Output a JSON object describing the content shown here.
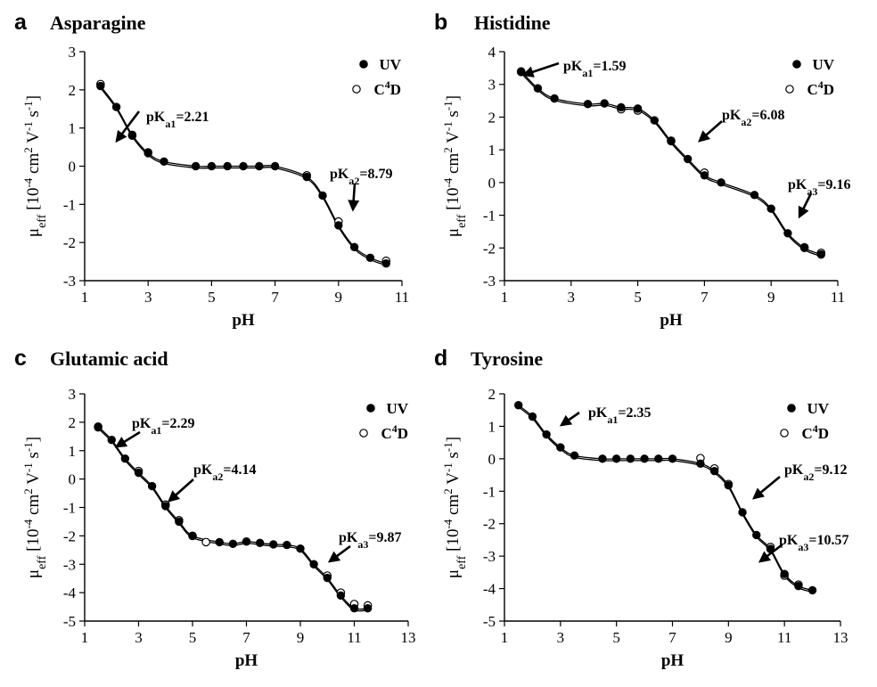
{
  "chart_data": [
    {
      "type": "scatter",
      "letter": "a",
      "title": "Asparagine",
      "xlabel": "pH",
      "ylabel": "μeff [10-4 cm2 V-1 s-1]",
      "xlim": [
        1,
        11
      ],
      "ylim": [
        -3,
        3
      ],
      "xticks": [
        "1",
        "3",
        "5",
        "7",
        "9",
        "11"
      ],
      "yticks": [
        "-3",
        "-2",
        "-1",
        "0",
        "1",
        "2",
        "3"
      ],
      "legend": [
        {
          "label": "UV",
          "marker": "filled-circle"
        },
        {
          "label": "C4D",
          "marker": "open-circle"
        }
      ],
      "series": [
        {
          "name": "UV",
          "x": [
            1.5,
            2.0,
            2.5,
            3.0,
            3.5,
            4.5,
            5.0,
            5.5,
            6.0,
            6.5,
            7.0,
            8.0,
            8.5,
            9.0,
            9.5,
            10.0,
            10.5
          ],
          "y": [
            2.1,
            1.55,
            0.82,
            0.34,
            0.12,
            0.0,
            0.0,
            0.0,
            0.0,
            0.0,
            0.0,
            -0.28,
            -0.77,
            -1.55,
            -2.12,
            -2.4,
            -2.55
          ]
        },
        {
          "name": "C4D",
          "x": [
            1.5,
            2.5,
            3.0,
            8.0,
            9.0,
            10.5
          ],
          "y": [
            2.15,
            0.8,
            0.36,
            -0.24,
            -1.45,
            -2.48
          ]
        }
      ],
      "annotations": [
        {
          "label": "pKa1=2.21",
          "pK": "pK",
          "sub": "a1",
          "val": "=2.21"
        },
        {
          "label": "pKa2=8.79",
          "pK": "pK",
          "sub": "a2",
          "val": "=8.79"
        }
      ]
    },
    {
      "type": "scatter",
      "letter": "b",
      "title": "Histidine",
      "xlabel": "pH",
      "ylabel": "μeff [10-4 cm2 V-1 s-1]",
      "xlim": [
        1,
        11
      ],
      "ylim": [
        -3,
        4
      ],
      "xticks": [
        "1",
        "3",
        "5",
        "7",
        "9",
        "11"
      ],
      "yticks": [
        "-3",
        "-2",
        "-1",
        "0",
        "1",
        "2",
        "3",
        "4"
      ],
      "legend": [
        {
          "label": "UV",
          "marker": "filled-circle"
        },
        {
          "label": "C4D",
          "marker": "open-circle"
        }
      ],
      "series": [
        {
          "name": "UV",
          "x": [
            1.5,
            2.0,
            2.5,
            3.5,
            4.0,
            4.5,
            5.0,
            5.5,
            6.0,
            6.5,
            7.0,
            7.5,
            8.5,
            9.0,
            9.5,
            10.0,
            10.5
          ],
          "y": [
            3.4,
            2.88,
            2.57,
            2.4,
            2.42,
            2.3,
            2.26,
            1.9,
            1.26,
            0.72,
            0.22,
            0.0,
            -0.38,
            -0.8,
            -1.55,
            -2.0,
            -2.2
          ]
        },
        {
          "name": "C4D",
          "x": [
            1.5,
            4.5,
            5.0,
            6.0,
            7.0,
            10.0,
            10.5
          ],
          "y": [
            3.38,
            2.24,
            2.2,
            1.28,
            0.3,
            -1.98,
            -2.15
          ]
        }
      ],
      "annotations": [
        {
          "label": "pKa1=1.59",
          "pK": "pK",
          "sub": "a1",
          "val": "=1.59"
        },
        {
          "label": "pKa2=6.08",
          "pK": "pK",
          "sub": "a2",
          "val": "=6.08"
        },
        {
          "label": "pKa3=9.16",
          "pK": "pK",
          "sub": "a3",
          "val": "=9.16"
        }
      ]
    },
    {
      "type": "scatter",
      "letter": "c",
      "title": "Glutamic acid",
      "xlabel": "pH",
      "ylabel": "μeff [10-4 cm2 V-1 s-1]",
      "xlim": [
        1,
        13
      ],
      "ylim": [
        -5,
        3
      ],
      "xticks": [
        "1",
        "3",
        "5",
        "7",
        "9",
        "11",
        "13"
      ],
      "yticks": [
        "-5",
        "-4",
        "-3",
        "-2",
        "-1",
        "0",
        "1",
        "2",
        "3"
      ],
      "legend": [
        {
          "label": "UV",
          "marker": "filled-circle"
        },
        {
          "label": "C4D",
          "marker": "open-circle"
        }
      ],
      "series": [
        {
          "name": "UV",
          "x": [
            1.5,
            2.0,
            2.5,
            3.0,
            3.5,
            4.0,
            4.5,
            5.0,
            6.0,
            6.5,
            7.0,
            7.5,
            8.0,
            8.5,
            9.0,
            9.5,
            10.0,
            10.5,
            11.0,
            11.5
          ],
          "y": [
            1.85,
            1.38,
            0.72,
            0.22,
            -0.25,
            -0.95,
            -1.5,
            -2.0,
            -2.22,
            -2.28,
            -2.2,
            -2.25,
            -2.3,
            -2.32,
            -2.45,
            -3.0,
            -3.48,
            -4.1,
            -4.55,
            -4.55
          ]
        },
        {
          "name": "C4D",
          "x": [
            1.5,
            3.0,
            4.0,
            4.5,
            5.0,
            5.5,
            10.0,
            10.5,
            11.0,
            11.5
          ],
          "y": [
            1.82,
            0.28,
            -0.9,
            -1.45,
            -2.0,
            -2.22,
            -3.4,
            -4.0,
            -4.4,
            -4.45
          ]
        }
      ],
      "annotations": [
        {
          "label": "pKa1=2.29",
          "pK": "pK",
          "sub": "a1",
          "val": "=2.29"
        },
        {
          "label": "pKa2=4.14",
          "pK": "pK",
          "sub": "a2",
          "val": "=4.14"
        },
        {
          "label": "pKa3=9.87",
          "pK": "pK",
          "sub": "a3",
          "val": "=9.87"
        }
      ]
    },
    {
      "type": "scatter",
      "letter": "d",
      "title": "Tyrosine",
      "xlabel": "pH",
      "ylabel": "μeff [10-4 cm2 V-1 s-1]",
      "xlim": [
        1,
        13
      ],
      "ylim": [
        -5,
        2
      ],
      "xticks": [
        "1",
        "3",
        "5",
        "7",
        "9",
        "11",
        "13"
      ],
      "yticks": [
        "-5",
        "-4",
        "-3",
        "-2",
        "-1",
        "0",
        "1",
        "2"
      ],
      "legend": [
        {
          "label": "UV",
          "marker": "filled-circle"
        },
        {
          "label": "C4D",
          "marker": "open-circle"
        }
      ],
      "series": [
        {
          "name": "UV",
          "x": [
            1.5,
            2.0,
            2.5,
            3.0,
            3.5,
            4.5,
            5.0,
            5.5,
            6.0,
            6.5,
            7.0,
            8.0,
            8.5,
            9.0,
            9.5,
            10.0,
            10.5,
            11.0,
            11.5,
            12.0
          ],
          "y": [
            1.65,
            1.3,
            0.75,
            0.35,
            0.1,
            0.0,
            0.0,
            0.0,
            0.0,
            0.0,
            0.0,
            -0.15,
            -0.38,
            -0.82,
            -1.65,
            -2.35,
            -2.78,
            -3.55,
            -3.92,
            -4.05
          ]
        },
        {
          "name": "C4D",
          "x": [
            8.0,
            8.5,
            9.0,
            10.5,
            11.0,
            11.5
          ],
          "y": [
            0.02,
            -0.3,
            -0.78,
            -2.72,
            -3.6,
            -3.88
          ]
        }
      ],
      "annotations": [
        {
          "label": "pKa1=2.35",
          "pK": "pK",
          "sub": "a1",
          "val": "=2.35"
        },
        {
          "label": "pKa2=9.12",
          "pK": "pK",
          "sub": "a2",
          "val": "=9.12"
        },
        {
          "label": "pKa3=10.57",
          "pK": "pK",
          "sub": "a3",
          "val": "=10.57"
        }
      ]
    }
  ]
}
